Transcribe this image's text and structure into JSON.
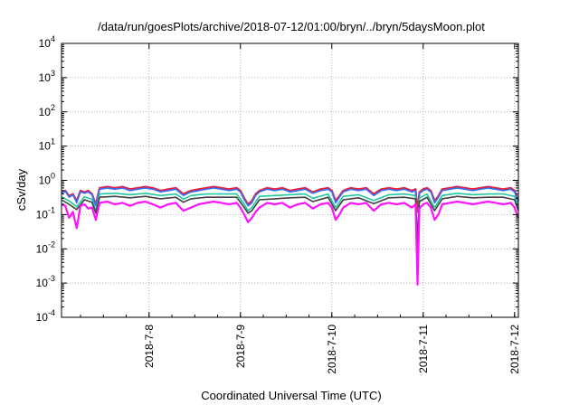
{
  "chart_data": {
    "type": "line",
    "title": "/data/run/goesPlots/archive/2018-07-12/01:00/bryn/../bryn/5daysMoon.plot",
    "xlabel": "Coordinated Universal Time (UTC)",
    "ylabel": "cSv/day",
    "y_scale": "log",
    "ylim": [
      0.0001,
      10000
    ],
    "xlim": [
      "2018-07-07 01:00",
      "2018-07-12 01:00"
    ],
    "grid": true,
    "y_ticks": [
      {
        "base": "10",
        "exp": "-4",
        "value": 0.0001
      },
      {
        "base": "10",
        "exp": "-3",
        "value": 0.001
      },
      {
        "base": "10",
        "exp": "-2",
        "value": 0.01
      },
      {
        "base": "10",
        "exp": "-1",
        "value": 0.1
      },
      {
        "base": "10",
        "exp": "0",
        "value": 1
      },
      {
        "base": "10",
        "exp": "1",
        "value": 10
      },
      {
        "base": "10",
        "exp": "2",
        "value": 100
      },
      {
        "base": "10",
        "exp": "3",
        "value": 1000
      },
      {
        "base": "10",
        "exp": "4",
        "value": 10000
      }
    ],
    "x_ticks": [
      {
        "label": "2018-7-8",
        "hours": 23
      },
      {
        "label": "2018-7-9",
        "hours": 47
      },
      {
        "label": "2018-7-10",
        "hours": 71
      },
      {
        "label": "2018-7-11",
        "hours": 95
      },
      {
        "label": "2018-7-12",
        "hours": 119
      }
    ],
    "x_hours_total": 120,
    "series": [
      {
        "color": "#e8203a",
        "x_hours": [
          0,
          1,
          2,
          3,
          4,
          5,
          6,
          7,
          8,
          9,
          10,
          12,
          14,
          16,
          18,
          20,
          22,
          24,
          26,
          28,
          30,
          32,
          34,
          36,
          38,
          40,
          42,
          44,
          46,
          47,
          48,
          49,
          50,
          51,
          52,
          54,
          56,
          58,
          60,
          62,
          64,
          66,
          68,
          70,
          71,
          72,
          73,
          74,
          76,
          78,
          80,
          82,
          84,
          86,
          88,
          90,
          92,
          93,
          93.5,
          94,
          95,
          96,
          97,
          98,
          99,
          100,
          102,
          104,
          106,
          108,
          110,
          112,
          114,
          116,
          118,
          119,
          120
        ],
        "values": [
          0.45,
          0.5,
          0.35,
          0.4,
          0.25,
          0.5,
          0.45,
          0.5,
          0.4,
          0.2,
          0.6,
          0.65,
          0.6,
          0.65,
          0.55,
          0.6,
          0.65,
          0.6,
          0.5,
          0.55,
          0.6,
          0.4,
          0.5,
          0.55,
          0.6,
          0.65,
          0.6,
          0.55,
          0.6,
          0.5,
          0.3,
          0.2,
          0.25,
          0.4,
          0.5,
          0.6,
          0.55,
          0.6,
          0.5,
          0.55,
          0.6,
          0.45,
          0.55,
          0.6,
          0.5,
          0.25,
          0.35,
          0.5,
          0.6,
          0.55,
          0.6,
          0.4,
          0.55,
          0.6,
          0.55,
          0.6,
          0.5,
          0.55,
          0.12,
          0.45,
          0.55,
          0.6,
          0.5,
          0.25,
          0.35,
          0.55,
          0.6,
          0.65,
          0.6,
          0.55,
          0.6,
          0.65,
          0.6,
          0.55,
          0.6,
          0.5,
          0.25
        ]
      },
      {
        "color": "#3070ff",
        "x_hours": [
          0,
          1,
          2,
          3,
          4,
          5,
          6,
          7,
          8,
          9,
          10,
          12,
          14,
          16,
          18,
          20,
          22,
          24,
          26,
          28,
          30,
          32,
          34,
          36,
          38,
          40,
          42,
          44,
          46,
          47,
          48,
          49,
          50,
          51,
          52,
          54,
          56,
          58,
          60,
          62,
          64,
          66,
          68,
          70,
          71,
          72,
          73,
          74,
          76,
          78,
          80,
          82,
          84,
          86,
          88,
          90,
          92,
          93,
          93.5,
          94,
          95,
          96,
          97,
          98,
          99,
          100,
          102,
          104,
          106,
          108,
          110,
          112,
          114,
          116,
          118,
          119,
          120
        ],
        "values": [
          0.42,
          0.48,
          0.32,
          0.38,
          0.22,
          0.46,
          0.42,
          0.46,
          0.38,
          0.18,
          0.55,
          0.6,
          0.55,
          0.6,
          0.5,
          0.55,
          0.6,
          0.55,
          0.46,
          0.5,
          0.55,
          0.36,
          0.46,
          0.5,
          0.55,
          0.6,
          0.55,
          0.5,
          0.55,
          0.46,
          0.27,
          0.18,
          0.22,
          0.36,
          0.46,
          0.55,
          0.5,
          0.55,
          0.46,
          0.5,
          0.55,
          0.42,
          0.5,
          0.55,
          0.46,
          0.22,
          0.32,
          0.46,
          0.55,
          0.5,
          0.55,
          0.36,
          0.5,
          0.55,
          0.5,
          0.55,
          0.46,
          0.5,
          0.01,
          0.42,
          0.5,
          0.55,
          0.46,
          0.22,
          0.32,
          0.5,
          0.55,
          0.6,
          0.55,
          0.5,
          0.55,
          0.6,
          0.55,
          0.5,
          0.55,
          0.46,
          0.22
        ]
      },
      {
        "color": "#20c8a0",
        "x_hours": [
          0,
          2,
          4,
          6,
          8,
          9,
          10,
          14,
          18,
          22,
          26,
          30,
          32,
          34,
          38,
          42,
          46,
          48,
          49,
          50,
          52,
          56,
          60,
          64,
          66,
          70,
          72,
          74,
          78,
          82,
          86,
          90,
          93,
          93.5,
          94,
          96,
          98,
          100,
          104,
          108,
          112,
          116,
          119,
          120
        ],
        "values": [
          0.33,
          0.25,
          0.17,
          0.33,
          0.28,
          0.13,
          0.4,
          0.42,
          0.38,
          0.42,
          0.36,
          0.4,
          0.28,
          0.36,
          0.4,
          0.4,
          0.4,
          0.2,
          0.13,
          0.16,
          0.34,
          0.36,
          0.38,
          0.4,
          0.3,
          0.4,
          0.16,
          0.34,
          0.38,
          0.26,
          0.38,
          0.4,
          0.36,
          0.02,
          0.3,
          0.4,
          0.16,
          0.36,
          0.42,
          0.38,
          0.4,
          0.4,
          0.34,
          0.16
        ]
      },
      {
        "color": "#404040",
        "x_hours": [
          0,
          2,
          4,
          6,
          8,
          9,
          10,
          14,
          18,
          22,
          26,
          30,
          32,
          34,
          38,
          42,
          46,
          48,
          49,
          50,
          52,
          56,
          60,
          64,
          66,
          70,
          72,
          74,
          78,
          82,
          86,
          90,
          93,
          93.5,
          94,
          96,
          98,
          100,
          104,
          108,
          112,
          116,
          119,
          120
        ],
        "values": [
          0.27,
          0.2,
          0.14,
          0.27,
          0.23,
          0.11,
          0.32,
          0.34,
          0.31,
          0.34,
          0.29,
          0.32,
          0.23,
          0.29,
          0.32,
          0.32,
          0.32,
          0.16,
          0.11,
          0.13,
          0.27,
          0.29,
          0.31,
          0.32,
          0.24,
          0.32,
          0.13,
          0.27,
          0.31,
          0.21,
          0.31,
          0.32,
          0.29,
          0.015,
          0.24,
          0.32,
          0.13,
          0.29,
          0.34,
          0.31,
          0.32,
          0.32,
          0.27,
          0.13
        ]
      },
      {
        "color": "#ff10ff",
        "x_hours": [
          0,
          1,
          2,
          3,
          4,
          5,
          6,
          7,
          8,
          9,
          10,
          12,
          14,
          16,
          18,
          20,
          22,
          24,
          26,
          28,
          30,
          32,
          34,
          36,
          38,
          40,
          42,
          44,
          46,
          47,
          48,
          49,
          50,
          51,
          52,
          54,
          56,
          58,
          60,
          62,
          64,
          66,
          68,
          70,
          71,
          72,
          73,
          74,
          76,
          78,
          80,
          82,
          84,
          86,
          88,
          90,
          92,
          93,
          93.5,
          94,
          95,
          96,
          97,
          98,
          99,
          100,
          102,
          104,
          106,
          108,
          110,
          112,
          114,
          116,
          118,
          119,
          120
        ],
        "values": [
          0.2,
          0.18,
          0.08,
          0.12,
          0.04,
          0.18,
          0.2,
          0.15,
          0.16,
          0.07,
          0.22,
          0.24,
          0.2,
          0.22,
          0.18,
          0.22,
          0.24,
          0.2,
          0.16,
          0.2,
          0.22,
          0.13,
          0.16,
          0.2,
          0.22,
          0.24,
          0.22,
          0.2,
          0.22,
          0.16,
          0.1,
          0.06,
          0.08,
          0.12,
          0.16,
          0.22,
          0.2,
          0.22,
          0.16,
          0.2,
          0.22,
          0.15,
          0.2,
          0.22,
          0.16,
          0.07,
          0.1,
          0.16,
          0.22,
          0.2,
          0.22,
          0.13,
          0.2,
          0.22,
          0.2,
          0.22,
          0.16,
          0.2,
          0.0009,
          0.15,
          0.2,
          0.22,
          0.16,
          0.07,
          0.1,
          0.2,
          0.22,
          0.24,
          0.22,
          0.2,
          0.22,
          0.24,
          0.22,
          0.2,
          0.22,
          0.16,
          0.08
        ]
      }
    ]
  }
}
